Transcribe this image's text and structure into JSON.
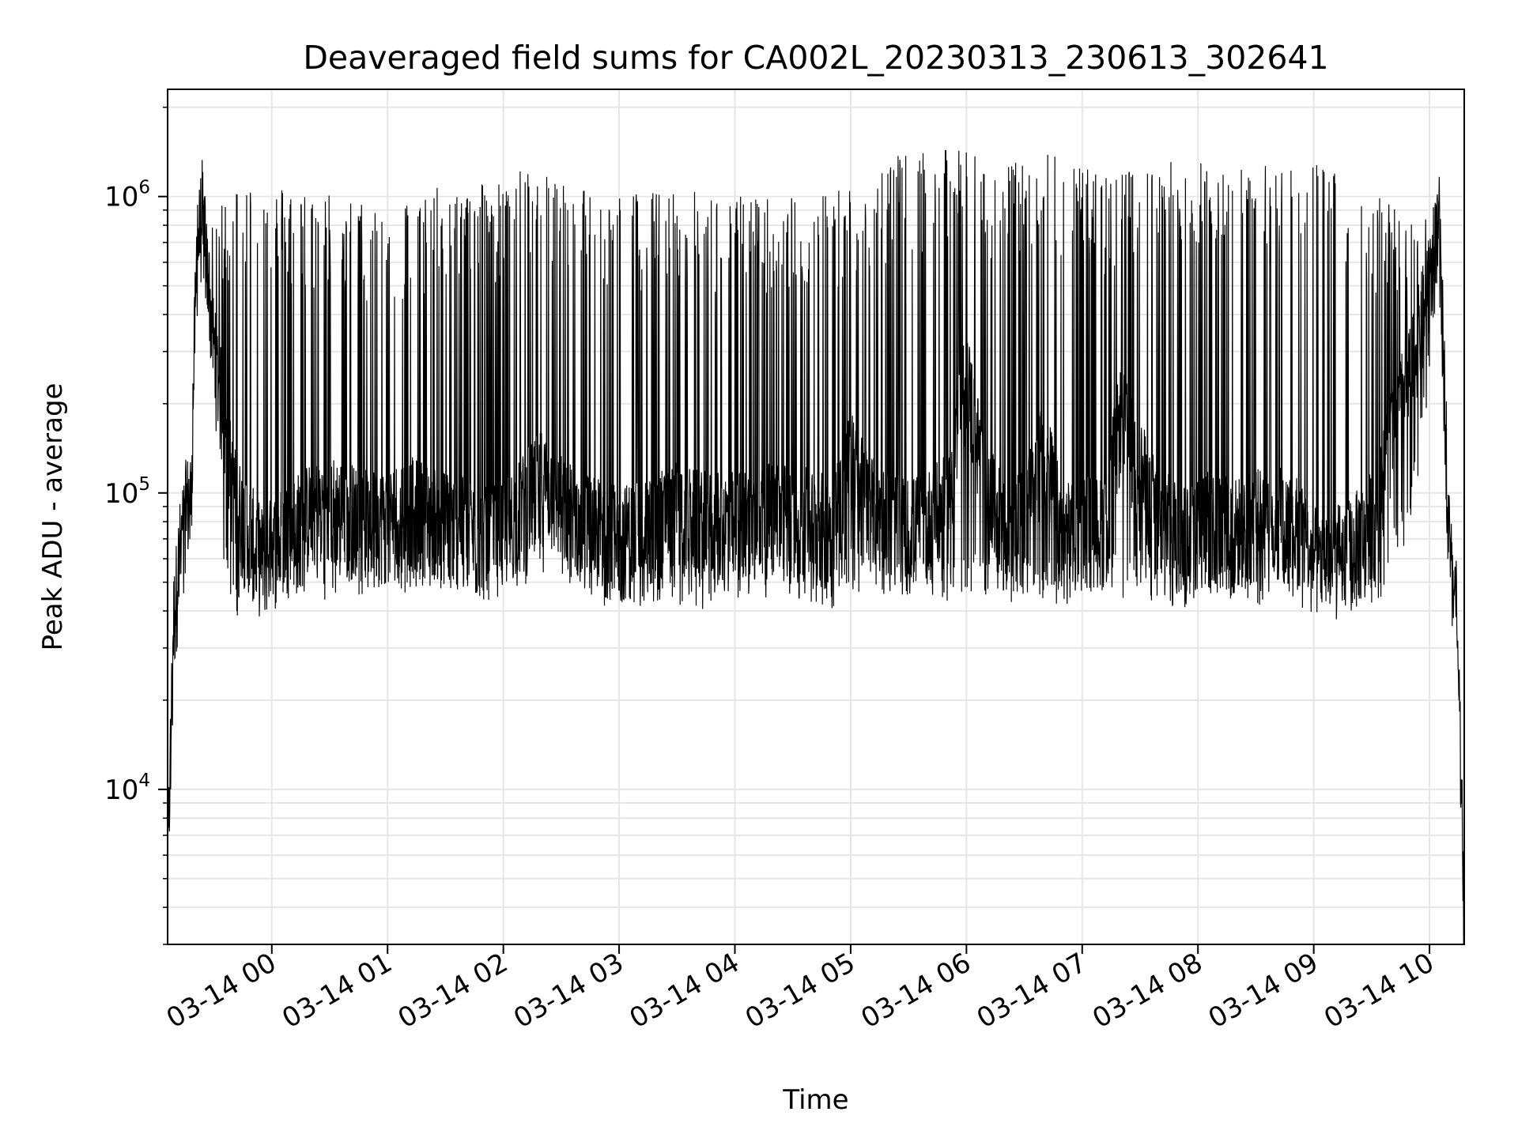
{
  "chart_data": {
    "type": "line",
    "title": "Deaveraged field sums for CA002L_20230313_230613_302641",
    "xlabel": "Time",
    "ylabel": "Peak ADU - average",
    "yscale": "log",
    "ylim": [
      3000,
      2300000
    ],
    "xlim": [
      "2023-03-13 23:06",
      "2023-03-14 10:18"
    ],
    "grid": true,
    "line_color": "#000000",
    "grid_color": "#e6e6e6",
    "x_ticks": [
      {
        "time": "2023-03-14 00:00",
        "label": "03-14 00"
      },
      {
        "time": "2023-03-14 01:00",
        "label": "03-14 01"
      },
      {
        "time": "2023-03-14 02:00",
        "label": "03-14 02"
      },
      {
        "time": "2023-03-14 03:00",
        "label": "03-14 03"
      },
      {
        "time": "2023-03-14 04:00",
        "label": "03-14 04"
      },
      {
        "time": "2023-03-14 05:00",
        "label": "03-14 05"
      },
      {
        "time": "2023-03-14 06:00",
        "label": "03-14 06"
      },
      {
        "time": "2023-03-14 07:00",
        "label": "03-14 07"
      },
      {
        "time": "2023-03-14 08:00",
        "label": "03-14 08"
      },
      {
        "time": "2023-03-14 09:00",
        "label": "03-14 09"
      },
      {
        "time": "2023-03-14 10:00",
        "label": "03-14 10"
      }
    ],
    "y_ticks": [
      {
        "value": 10000,
        "base": "10",
        "exp": "4"
      },
      {
        "value": 100000,
        "base": "10",
        "exp": "5"
      },
      {
        "value": 1000000,
        "base": "10",
        "exp": "6"
      }
    ],
    "series": [
      {
        "x": [
          "2023-03-13 23:06",
          "2023-03-13 23:09",
          "2023-03-13 23:12",
          "2023-03-13 23:15",
          "2023-03-13 23:18",
          "2023-03-13 23:21",
          "2023-03-13 23:24",
          "2023-03-13 23:27",
          "2023-03-13 23:30",
          "2023-03-13 23:35",
          "2023-03-13 23:40",
          "2023-03-13 23:45",
          "2023-03-13 23:50",
          "2023-03-13 23:55",
          "2023-03-14 00:00",
          "2023-03-14 00:10",
          "2023-03-14 00:20",
          "2023-03-14 00:30",
          "2023-03-14 00:40",
          "2023-03-14 00:50",
          "2023-03-14 01:00",
          "2023-03-14 01:10",
          "2023-03-14 01:20",
          "2023-03-14 01:30",
          "2023-03-14 01:40",
          "2023-03-14 01:50",
          "2023-03-14 02:00",
          "2023-03-14 02:10",
          "2023-03-14 02:20",
          "2023-03-14 02:30",
          "2023-03-14 02:40",
          "2023-03-14 02:50",
          "2023-03-14 03:00",
          "2023-03-14 03:10",
          "2023-03-14 03:20",
          "2023-03-14 03:30",
          "2023-03-14 03:40",
          "2023-03-14 03:50",
          "2023-03-14 04:00",
          "2023-03-14 04:10",
          "2023-03-14 04:20",
          "2023-03-14 04:30",
          "2023-03-14 04:40",
          "2023-03-14 04:50",
          "2023-03-14 05:00",
          "2023-03-14 05:10",
          "2023-03-14 05:20",
          "2023-03-14 05:30",
          "2023-03-14 05:40",
          "2023-03-14 05:50",
          "2023-03-14 06:00",
          "2023-03-14 06:10",
          "2023-03-14 06:20",
          "2023-03-14 06:30",
          "2023-03-14 06:40",
          "2023-03-14 06:50",
          "2023-03-14 07:00",
          "2023-03-14 07:10",
          "2023-03-14 07:20",
          "2023-03-14 07:30",
          "2023-03-14 07:40",
          "2023-03-14 07:50",
          "2023-03-14 08:00",
          "2023-03-14 08:10",
          "2023-03-14 08:20",
          "2023-03-14 08:30",
          "2023-03-14 08:40",
          "2023-03-14 08:50",
          "2023-03-14 09:00",
          "2023-03-14 09:10",
          "2023-03-14 09:20",
          "2023-03-14 09:30",
          "2023-03-14 09:40",
          "2023-03-14 09:50",
          "2023-03-14 10:00",
          "2023-03-14 10:05",
          "2023-03-14 10:10",
          "2023-03-14 10:14",
          "2023-03-14 10:18"
        ],
        "base": [
          5000,
          35000,
          60000,
          85000,
          95000,
          600000,
          900000,
          500000,
          300000,
          180000,
          100000,
          80000,
          70000,
          60000,
          65000,
          75000,
          85000,
          90000,
          85000,
          80000,
          80000,
          90000,
          85000,
          80000,
          75000,
          70000,
          75000,
          90000,
          110000,
          90000,
          80000,
          75000,
          70000,
          75000,
          80000,
          85000,
          80000,
          78000,
          80000,
          82000,
          85000,
          85000,
          80000,
          78000,
          130000,
          90000,
          80000,
          75000,
          80000,
          90000,
          250000,
          100000,
          75000,
          80000,
          150000,
          70000,
          80000,
          75000,
          180000,
          120000,
          80000,
          75000,
          78000,
          80000,
          75000,
          80000,
          85000,
          80000,
          60000,
          60000,
          65000,
          80000,
          150000,
          250000,
          500000,
          800000,
          80000,
          40000,
          5000
        ],
        "peak": [
          5000,
          35000,
          60000,
          85000,
          95000,
          1300000,
          1300000,
          1100000,
          700000,
          1100000,
          1100000,
          1150000,
          1150000,
          1100000,
          1100000,
          1100000,
          1050000,
          1050000,
          1000000,
          950000,
          1000000,
          1000000,
          1050000,
          1100000,
          1050000,
          1200000,
          1100000,
          1250000,
          1300000,
          1150000,
          1100000,
          1050000,
          1050000,
          1050000,
          1050000,
          1050000,
          1050000,
          1000000,
          1000000,
          1050000,
          1050000,
          1000000,
          1000000,
          1100000,
          1100000,
          1200000,
          1350000,
          1400000,
          1400000,
          1450000,
          1450000,
          1400000,
          1300000,
          1300000,
          1450000,
          1400000,
          1300000,
          1200000,
          1200000,
          1250000,
          1300000,
          1350000,
          1350000,
          1350000,
          1300000,
          1300000,
          1300000,
          1300000,
          1300000,
          1300000,
          1200000,
          1050000,
          1000000,
          800000,
          1000000,
          1150000,
          100000,
          40000,
          5000
        ],
        "trough": [
          5000,
          30000,
          55000,
          80000,
          90000,
          500000,
          600000,
          400000,
          250000,
          60000,
          45000,
          40000,
          45000,
          50000,
          50000,
          50000,
          50000,
          48000,
          50000,
          50000,
          50000,
          50000,
          52000,
          48000,
          48000,
          50000,
          52000,
          52000,
          55000,
          50000,
          48000,
          45000,
          45000,
          45000,
          45000,
          45000,
          45000,
          45000,
          48000,
          48000,
          50000,
          50000,
          45000,
          45000,
          50000,
          52000,
          50000,
          50000,
          50000,
          48000,
          48000,
          50000,
          45000,
          50000,
          45000,
          45000,
          52000,
          48000,
          48000,
          50000,
          45000,
          45000,
          45000,
          48000,
          45000,
          45000,
          48000,
          45000,
          45000,
          45000,
          45000,
          45000,
          55000,
          80000,
          250000,
          500000,
          80000,
          40000,
          4500
        ]
      }
    ]
  }
}
